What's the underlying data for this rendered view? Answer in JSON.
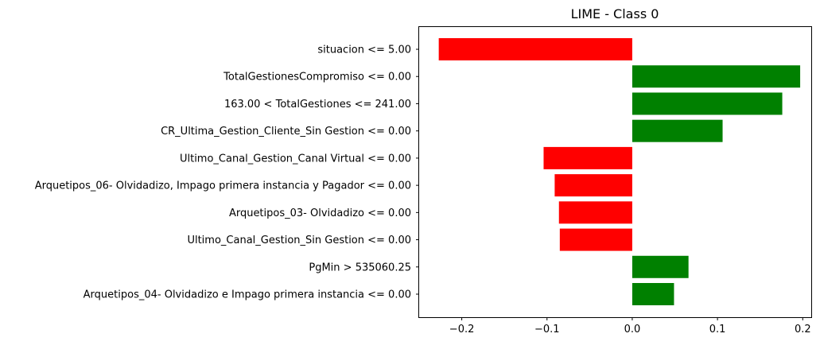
{
  "chart_data": {
    "type": "bar",
    "orientation": "horizontal",
    "title": "LIME - Class 0",
    "xlabel": "",
    "ylabel": "",
    "xlim": [
      -0.25,
      0.21
    ],
    "xticks": [
      -0.2,
      -0.1,
      0.0,
      0.1,
      0.2
    ],
    "xtick_labels": [
      "−0.2",
      "−0.1",
      "0.0",
      "0.1",
      "0.2"
    ],
    "grid": false,
    "legend": "none",
    "colors": {
      "positive": "#008000",
      "negative": "#ff0000"
    },
    "categories": [
      "situacion <= 5.00",
      "TotalGestionesCompromiso <= 0.00",
      "163.00 < TotalGestiones <= 241.00",
      "CR_Ultima_Gestion_Cliente_Sin Gestion <= 0.00",
      "Ultimo_Canal_Gestion_Canal Virtual <= 0.00",
      "Arquetipos_06- Olvidadizo, Impago primera instancia y Pagador <= 0.00",
      "Arquetipos_03- Olvidadizo <= 0.00",
      "Ultimo_Canal_Gestion_Sin Gestion <= 0.00",
      "PgMin > 535060.25",
      "Arquetipos_04- Olvidadizo e Impago primera instancia <= 0.00"
    ],
    "values": [
      -0.227,
      0.197,
      0.176,
      0.106,
      -0.104,
      -0.091,
      -0.086,
      -0.085,
      0.066,
      0.049
    ]
  }
}
